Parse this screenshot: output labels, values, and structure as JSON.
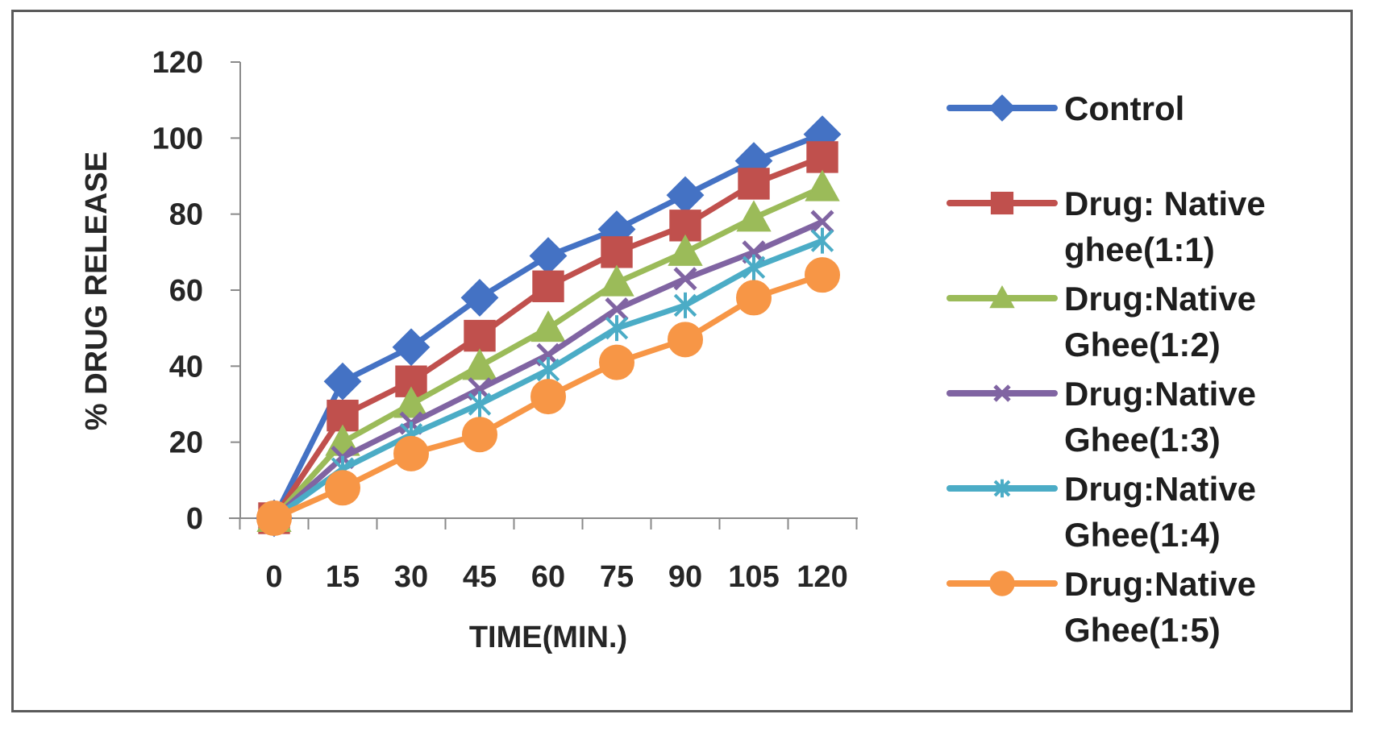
{
  "chart_data": {
    "type": "line",
    "xlabel": "TIME(MIN.)",
    "ylabel": "% DRUG RELEASE",
    "ylim": [
      0,
      120
    ],
    "yticks": [
      "0",
      "20",
      "40",
      "60",
      "80",
      "100",
      "120"
    ],
    "categories": [
      "0",
      "15",
      "30",
      "45",
      "60",
      "75",
      "90",
      "105",
      "120"
    ],
    "grid": false,
    "legend_position": "right",
    "series": [
      {
        "name": "Control",
        "legend_lines": [
          "Control"
        ],
        "color": "#4472C4",
        "marker": "diamond",
        "values": [
          0,
          36,
          45,
          58,
          69,
          76,
          85,
          94,
          101
        ]
      },
      {
        "name": "Drug: Native ghee(1:1)",
        "legend_lines": [
          "Drug: Native",
          "ghee(1:1)"
        ],
        "color": "#C0504D",
        "marker": "square",
        "values": [
          0,
          27,
          36,
          48,
          61,
          70,
          77,
          88,
          95
        ]
      },
      {
        "name": "Drug:Native Ghee(1:2)",
        "legend_lines": [
          "Drug:Native",
          "Ghee(1:2)"
        ],
        "color": "#9BBB59",
        "marker": "triangle",
        "values": [
          0,
          20,
          30,
          40,
          50,
          62,
          70,
          79,
          87
        ]
      },
      {
        "name": "Drug:Native Ghee(1:3)",
        "legend_lines": [
          "Drug:Native",
          "Ghee(1:3)"
        ],
        "color": "#8064A2",
        "marker": "x",
        "values": [
          0,
          16,
          25,
          34,
          43,
          55,
          63,
          70,
          78
        ]
      },
      {
        "name": "Drug:Native Ghee(1:4)",
        "legend_lines": [
          "Drug:Native",
          "Ghee(1:4)"
        ],
        "color": "#4BACC6",
        "marker": "star",
        "values": [
          0,
          13,
          22,
          30,
          39,
          50,
          56,
          66,
          73
        ]
      },
      {
        "name": "Drug:Native Ghee(1:5)",
        "legend_lines": [
          "Drug:Native",
          "Ghee(1:5)"
        ],
        "color": "#F79646",
        "marker": "circle",
        "values": [
          0,
          8,
          17,
          22,
          32,
          41,
          47,
          58,
          64
        ]
      }
    ]
  }
}
